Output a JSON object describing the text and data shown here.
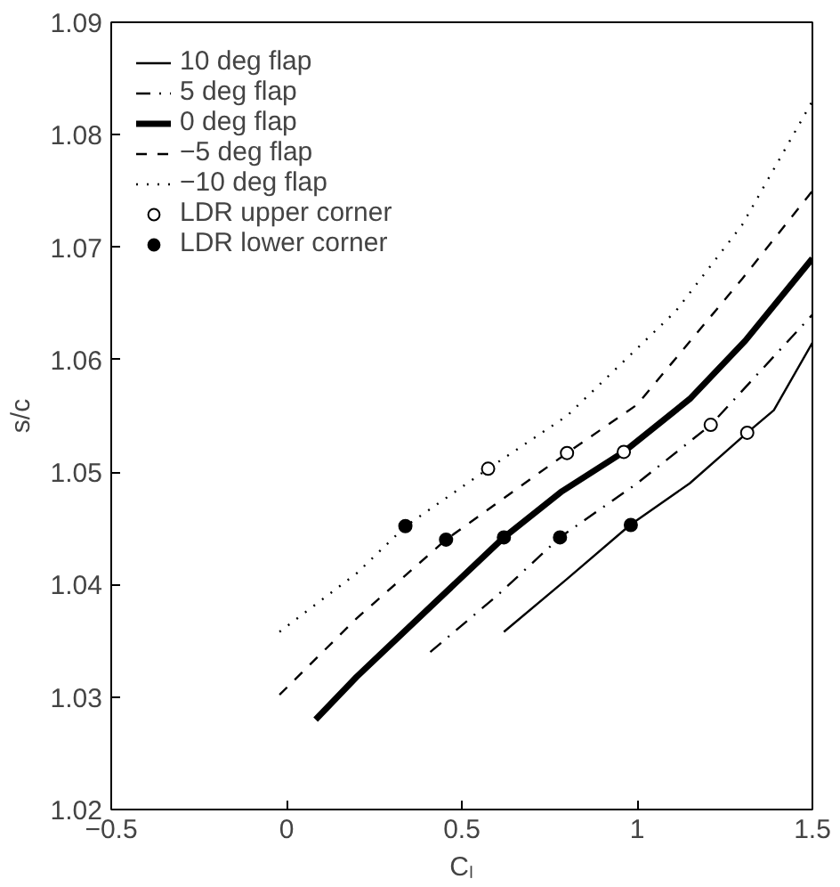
{
  "chart_data": {
    "type": "line",
    "xlabel": "Cₗ",
    "ylabel": "s/c",
    "xlim": [
      -0.5,
      1.5
    ],
    "ylim": [
      1.02,
      1.09
    ],
    "xticks": [
      {
        "value": -0.5,
        "label": "−0.5"
      },
      0,
      0.5,
      1,
      1.5
    ],
    "yticks": [
      1.02,
      1.03,
      1.04,
      1.05,
      1.06,
      1.07,
      1.08,
      1.09
    ],
    "grid": false,
    "legend": "top left",
    "series": [
      {
        "name": "10 deg flap",
        "color": "#000000",
        "line_style": "solid",
        "x": [
          0.62,
          0.8,
          0.98,
          1.15,
          1.314,
          1.39,
          1.5
        ],
        "values": [
          1.0358,
          1.0405,
          1.0453,
          1.049,
          1.0535,
          1.0555,
          1.0615
        ]
      },
      {
        "name": "5 deg flap",
        "color": "#000000",
        "line_style": "dashdot",
        "x": [
          0.41,
          0.6,
          0.78,
          1.0,
          1.21,
          1.5
        ],
        "values": [
          1.034,
          1.039,
          1.0442,
          1.049,
          1.0542,
          1.064
        ]
      },
      {
        "name": "0 deg flap",
        "color": "#000000",
        "line_style": "solid",
        "x": [
          0.083,
          0.2,
          0.42,
          0.62,
          0.786,
          0.962,
          1.15,
          1.309,
          1.5
        ],
        "values": [
          1.028,
          1.0318,
          1.0383,
          1.0442,
          1.0483,
          1.0518,
          1.0565,
          1.0617,
          1.069
        ]
      },
      {
        "name": "−5 deg flap",
        "color": "#000000",
        "line_style": "dashed",
        "x": [
          -0.02,
          0.2,
          0.455,
          0.8,
          1.0,
          1.3,
          1.5
        ],
        "values": [
          1.0302,
          1.037,
          1.044,
          1.0517,
          1.056,
          1.0672,
          1.075
        ]
      },
      {
        "name": "−10 deg flap",
        "color": "#000000",
        "line_style": "dotted",
        "x": [
          -0.02,
          0.2,
          0.34,
          0.575,
          0.8,
          1.11,
          1.3,
          1.5
        ],
        "values": [
          1.0358,
          1.041,
          1.0452,
          1.0503,
          1.055,
          1.0643,
          1.072,
          1.083
        ]
      },
      {
        "name": "LDR upper corner",
        "type": "scatter",
        "marker": "circle",
        "color": "#ffffff",
        "x": [
          0.575,
          0.8,
          0.962,
          1.21,
          1.314
        ],
        "values": [
          1.0503,
          1.0517,
          1.0518,
          1.0542,
          1.0535
        ]
      },
      {
        "name": "LDR lower corner",
        "type": "scatter",
        "marker": "circle",
        "color": "#000000",
        "x": [
          0.339,
          0.455,
          0.62,
          0.78,
          0.982
        ],
        "values": [
          1.0452,
          1.044,
          1.0442,
          1.0442,
          1.0453
        ]
      }
    ]
  }
}
